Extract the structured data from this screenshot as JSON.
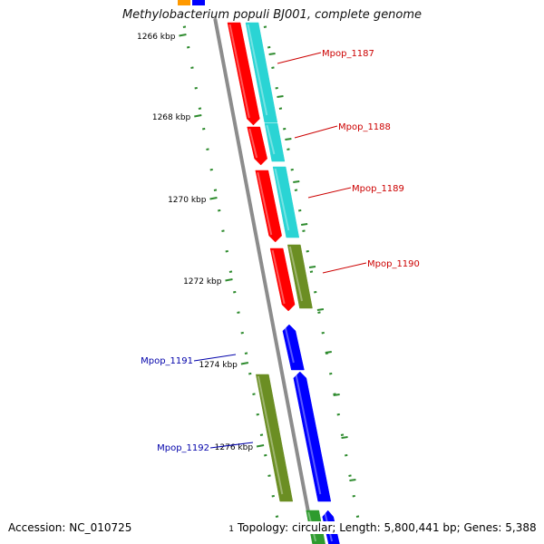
{
  "title": "Methylobacterium populi BJ001, complete genome",
  "footer": {
    "accession": "Accession: NC_010725",
    "origin_mark": "1",
    "topology": "Topology: circular; Length: 5,800,441 bp; Genes: 5,388"
  },
  "colors": {
    "backbone": "#8c8c8c",
    "tick": "#2e8b2e",
    "red_gene": "#ff0000",
    "cyan_gene": "#2ad4d4",
    "olive_gene": "#6b8e23",
    "blue_gene": "#0000ff",
    "green_gene": "#2e9b2e",
    "orange_gene": "#ff9900",
    "label_red": "#cc0000",
    "label_blue": "#0000aa"
  },
  "ticks": [
    {
      "label": "1266 kbp"
    },
    {
      "label": "1268 kbp"
    },
    {
      "label": "1270 kbp"
    },
    {
      "label": "1272 kbp"
    },
    {
      "label": "1274 kbp"
    },
    {
      "label": "1276 kbp"
    }
  ],
  "gene_labels": [
    {
      "name": "Mpop_1187",
      "color": "label_red"
    },
    {
      "name": "Mpop_1188",
      "color": "label_red"
    },
    {
      "name": "Mpop_1189",
      "color": "label_red"
    },
    {
      "name": "Mpop_1190",
      "color": "label_red"
    },
    {
      "name": "Mpop_1191",
      "color": "label_blue"
    },
    {
      "name": "Mpop_1192",
      "color": "label_blue"
    }
  ]
}
